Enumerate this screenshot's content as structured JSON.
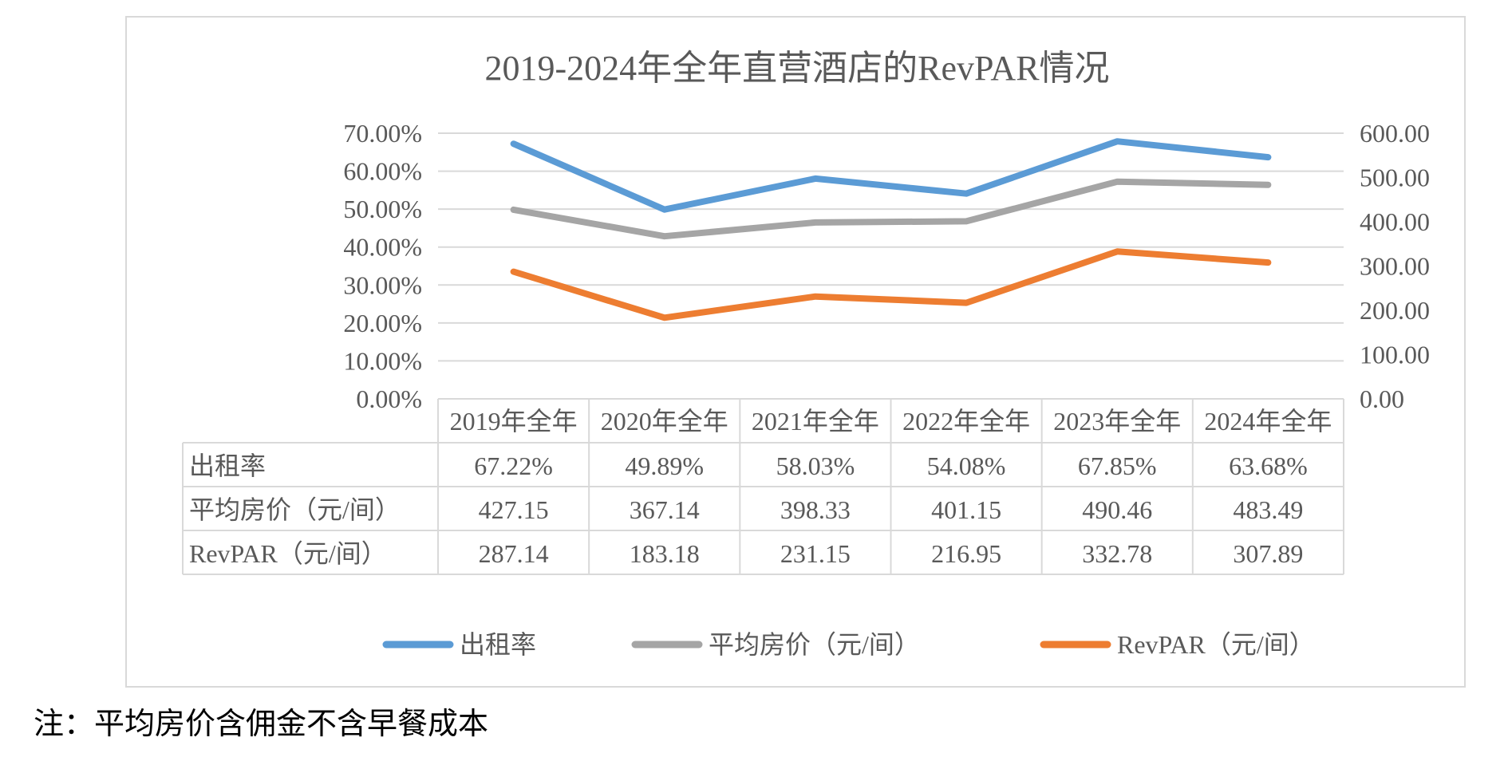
{
  "chart_data": {
    "type": "line",
    "title": "2019-2024年全年直营酒店的RevPAR情况",
    "categories": [
      "2019年全年",
      "2020年全年",
      "2021年全年",
      "2022年全年",
      "2023年全年",
      "2024年全年"
    ],
    "left_axis": {
      "ticks": [
        "0.00%",
        "10.00%",
        "20.00%",
        "30.00%",
        "40.00%",
        "50.00%",
        "60.00%",
        "70.00%"
      ],
      "ylim": [
        0,
        70
      ]
    },
    "right_axis": {
      "ticks": [
        "0.00",
        "100.00",
        "200.00",
        "300.00",
        "400.00",
        "500.00",
        "600.00"
      ],
      "ylim": [
        0,
        600
      ]
    },
    "series": [
      {
        "name": "出租率",
        "axis": "left",
        "color": "#5b9bd5",
        "values": [
          67.22,
          49.89,
          58.03,
          54.08,
          67.85,
          63.68
        ],
        "labels": [
          "67.22%",
          "49.89%",
          "58.03%",
          "54.08%",
          "67.85%",
          "63.68%"
        ]
      },
      {
        "name": "平均房价（元/间）",
        "axis": "right",
        "color": "#a5a5a5",
        "values": [
          427.15,
          367.14,
          398.33,
          401.15,
          490.46,
          483.49
        ],
        "labels": [
          "427.15",
          "367.14",
          "398.33",
          "401.15",
          "490.46",
          "483.49"
        ]
      },
      {
        "name": "RevPAR（元/间）",
        "axis": "right",
        "color": "#ed7d31",
        "values": [
          287.14,
          183.18,
          231.15,
          216.95,
          332.78,
          307.89
        ],
        "labels": [
          "287.14",
          "183.18",
          "231.15",
          "216.95",
          "332.78",
          "307.89"
        ]
      }
    ],
    "legend_position": "bottom",
    "grid": true
  },
  "note": "注：平均房价含佣金不含早餐成本",
  "colors": {
    "grid": "#d9d9d9",
    "text": "#595959",
    "frame": "#d9d9d9"
  }
}
